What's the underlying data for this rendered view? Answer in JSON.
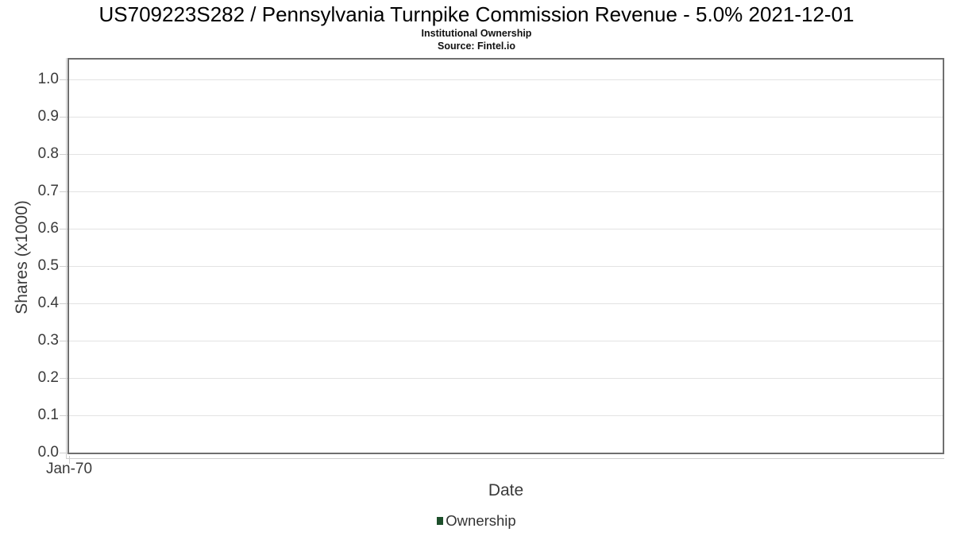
{
  "chart_data": {
    "type": "line",
    "title": "US709223S282 / Pennsylvania Turnpike Commission Revenue - 5.0% 2021-12-01",
    "subtitle": "Institutional Ownership",
    "source": "Source: Fintel.io",
    "xlabel": "Date",
    "ylabel": "Shares (x1000)",
    "x_ticks": [
      "Jan-70"
    ],
    "y_ticks": [
      {
        "value": 0.0,
        "label": "0.0"
      },
      {
        "value": 0.1,
        "label": "0.1"
      },
      {
        "value": 0.2,
        "label": "0.2"
      },
      {
        "value": 0.3,
        "label": "0.3"
      },
      {
        "value": 0.4,
        "label": "0.4"
      },
      {
        "value": 0.5,
        "label": "0.5"
      },
      {
        "value": 0.6,
        "label": "0.6"
      },
      {
        "value": 0.7,
        "label": "0.7"
      },
      {
        "value": 0.8,
        "label": "0.8"
      },
      {
        "value": 0.9,
        "label": "0.9"
      },
      {
        "value": 1.0,
        "label": "1.0"
      }
    ],
    "ylim": [
      0,
      1.053
    ],
    "grid": true,
    "legend": {
      "position": "bottom",
      "entries": [
        {
          "label": "Ownership",
          "color": "#1d4f2b"
        }
      ]
    },
    "series": [
      {
        "name": "Ownership",
        "x": [],
        "y": []
      }
    ]
  },
  "colors": {
    "legend_green": "#1d4f2b",
    "plot_border": "#6f6f6f",
    "gridline": "#e3e3e3",
    "axis_line": "#cfcfcf",
    "tick_text": "#3a3a3a",
    "title_text": "#000000"
  }
}
